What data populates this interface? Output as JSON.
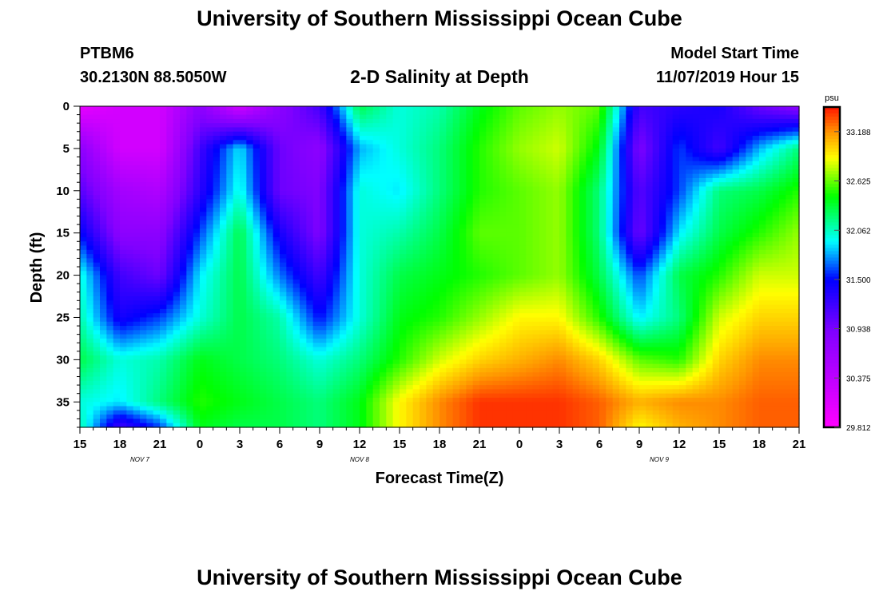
{
  "header": {
    "title": "University of Southern Mississippi Ocean Cube",
    "station_id": "PTBM6",
    "station_coords": "30.2130N 88.5050W",
    "plot_title": "2-D Salinity at Depth",
    "model_label": "Model Start Time",
    "model_time": "11/07/2019 Hour 15"
  },
  "footer": {
    "title": "University of Southern Mississippi Ocean Cube"
  },
  "chart_data": {
    "type": "heatmap",
    "xlabel": "Forecast Time(Z)",
    "ylabel": "Depth (ft)",
    "x_hours_range": [
      0,
      54
    ],
    "x_ticks": [
      {
        "h": 0,
        "label": "15"
      },
      {
        "h": 3,
        "label": "18"
      },
      {
        "h": 6,
        "label": "21"
      },
      {
        "h": 9,
        "label": "0"
      },
      {
        "h": 12,
        "label": "3"
      },
      {
        "h": 15,
        "label": "6"
      },
      {
        "h": 18,
        "label": "9"
      },
      {
        "h": 21,
        "label": "12"
      },
      {
        "h": 24,
        "label": "15"
      },
      {
        "h": 27,
        "label": "18"
      },
      {
        "h": 30,
        "label": "21"
      },
      {
        "h": 33,
        "label": "0"
      },
      {
        "h": 36,
        "label": "3"
      },
      {
        "h": 39,
        "label": "6"
      },
      {
        "h": 42,
        "label": "9"
      },
      {
        "h": 45,
        "label": "12"
      },
      {
        "h": 48,
        "label": "15"
      },
      {
        "h": 51,
        "label": "18"
      },
      {
        "h": 54,
        "label": "21"
      }
    ],
    "date_labels": [
      {
        "h": 4.5,
        "label": "NOV 7"
      },
      {
        "h": 21,
        "label": "NOV 8"
      },
      {
        "h": 43.5,
        "label": "NOV 9"
      }
    ],
    "ylim": [
      0,
      38
    ],
    "y_ticks": [
      0,
      5,
      10,
      15,
      20,
      25,
      30,
      35
    ],
    "colorbar": {
      "unit": "psu",
      "range": [
        29.812,
        33.469
      ],
      "ticks": [
        "29.812",
        "30.375",
        "30.938",
        "31.500",
        "32.062",
        "32.625",
        "33.188"
      ],
      "tick_values": [
        29.812,
        30.375,
        30.938,
        31.5,
        32.062,
        32.625,
        33.188
      ]
    },
    "grid": {
      "hours": [
        0,
        3,
        6,
        9,
        12,
        15,
        18,
        21,
        24,
        27,
        30,
        33,
        36,
        39,
        42,
        45,
        48,
        51,
        54
      ],
      "depths": [
        0,
        5,
        10,
        15,
        20,
        25,
        30,
        35,
        38
      ],
      "values": [
        [
          30.0,
          30.2,
          30.2,
          30.8,
          30.2,
          30.8,
          31.2,
          32.3,
          32.0,
          32.1,
          32.4,
          32.6,
          32.7,
          32.6,
          31.2,
          31.3,
          31.4,
          31.0,
          30.8
        ],
        [
          30.8,
          30.2,
          30.2,
          31.2,
          31.9,
          31.0,
          30.8,
          31.8,
          32.0,
          32.2,
          32.5,
          32.7,
          32.8,
          32.4,
          30.9,
          31.6,
          31.2,
          31.8,
          32.2
        ],
        [
          31.1,
          30.6,
          30.5,
          31.3,
          32.0,
          31.0,
          30.9,
          32.0,
          31.9,
          32.2,
          32.5,
          32.6,
          32.7,
          32.2,
          31.1,
          31.6,
          32.2,
          32.3,
          32.5
        ],
        [
          31.5,
          30.8,
          30.8,
          31.6,
          32.3,
          31.4,
          30.9,
          32.0,
          32.1,
          32.3,
          32.6,
          32.6,
          32.7,
          32.2,
          31.0,
          31.9,
          32.3,
          32.5,
          32.7
        ],
        [
          32.0,
          31.2,
          31.0,
          31.9,
          32.3,
          31.7,
          31.2,
          32.0,
          32.3,
          32.4,
          32.5,
          32.6,
          32.7,
          32.3,
          31.6,
          32.3,
          32.5,
          32.8,
          32.8
        ],
        [
          32.1,
          31.4,
          31.6,
          32.0,
          32.3,
          32.1,
          31.5,
          32.0,
          32.4,
          32.5,
          32.7,
          32.9,
          32.9,
          32.5,
          31.9,
          32.2,
          32.8,
          33.0,
          33.0
        ],
        [
          32.3,
          32.0,
          32.1,
          32.4,
          32.3,
          32.2,
          32.0,
          32.2,
          32.5,
          32.8,
          33.0,
          33.1,
          33.2,
          33.0,
          32.6,
          32.5,
          33.0,
          33.2,
          33.2
        ],
        [
          32.0,
          31.9,
          32.2,
          32.5,
          32.4,
          32.3,
          32.2,
          32.4,
          32.9,
          33.2,
          33.4,
          33.4,
          33.4,
          33.3,
          33.1,
          33.2,
          33.2,
          33.3,
          33.3
        ],
        [
          32.1,
          31.2,
          31.6,
          32.4,
          32.3,
          32.3,
          32.2,
          32.4,
          32.9,
          33.2,
          33.4,
          33.4,
          33.4,
          33.3,
          32.9,
          33.1,
          33.2,
          33.3,
          33.3
        ]
      ]
    }
  }
}
